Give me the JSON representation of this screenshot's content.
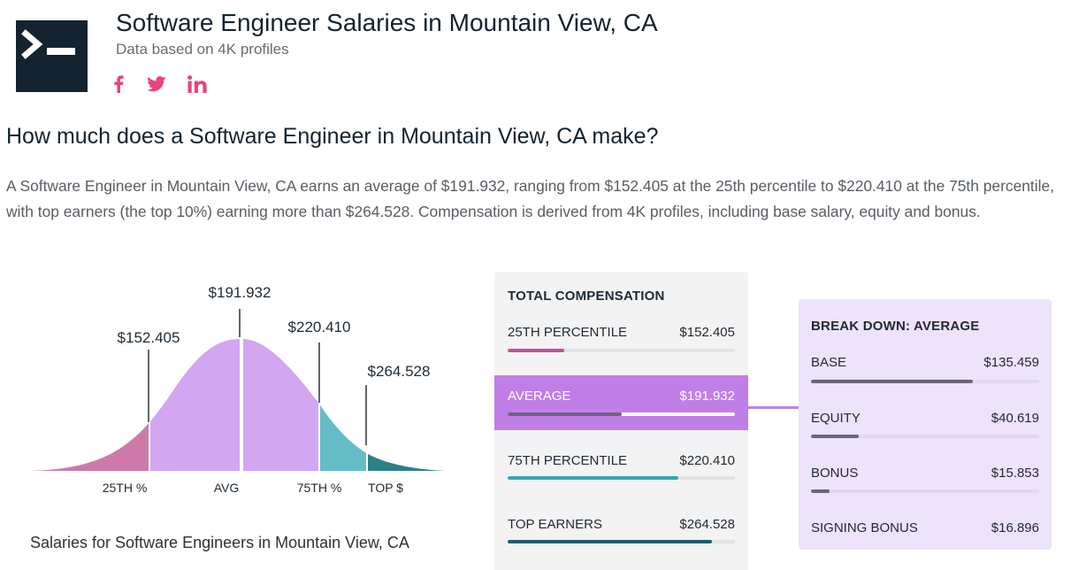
{
  "header": {
    "title": "Software Engineer Salaries in Mountain View, CA",
    "subtitle": "Data based on 4K profiles",
    "logo_icon": "terminal-prompt-icon",
    "social_icons": [
      "facebook-icon",
      "twitter-icon",
      "linkedin-icon"
    ],
    "social_color": "#e8467a"
  },
  "content": {
    "question": "How much does a Software Engineer in Mountain View, CA make?",
    "paragraph": "A Software Engineer in Mountain View, CA earns an average of $191.932, ranging from $152.405 at the 25th percentile to $220.410 at the 75th percentile, with top earners (the top 10%) earning more than $264.528. Compensation is derived from 4K profiles, including base salary, equity and bonus."
  },
  "chart_data": [
    {
      "type": "area",
      "caption": "Salaries for Software Engineers in Mountain View, CA",
      "markers": [
        {
          "label": "25TH %",
          "value_label": "$152.405",
          "color": "#cd7aab"
        },
        {
          "label": "AVG",
          "value_label": "$191.932",
          "color": "#d2a6f1"
        },
        {
          "label": "75TH %",
          "value_label": "$220.410",
          "color": "#64bdc6"
        },
        {
          "label": "TOP $",
          "value_label": "$264.528",
          "color": "#2e7f87"
        }
      ]
    },
    {
      "type": "table",
      "title": "TOTAL COMPENSATION",
      "rows": [
        {
          "label": "25TH PERCENTILE",
          "value": "$152.405",
          "fraction": 0.25,
          "color": "#c4509a"
        },
        {
          "label": "AVERAGE",
          "value": "$191.932",
          "fraction": 0.5,
          "color": "#6b6480",
          "highlight": true
        },
        {
          "label": "75TH PERCENTILE",
          "value": "$220.410",
          "fraction": 0.75,
          "color": "#3aa6ad"
        },
        {
          "label": "TOP EARNERS",
          "value": "$264.528",
          "fraction": 0.9,
          "color": "#1c5c68"
        }
      ]
    },
    {
      "type": "table",
      "title": "BREAK DOWN: AVERAGE",
      "rows": [
        {
          "label": "BASE",
          "value": "$135.459",
          "fraction": 0.71,
          "color": "#6b6480"
        },
        {
          "label": "EQUITY",
          "value": "$40.619",
          "fraction": 0.21,
          "color": "#6b6480"
        },
        {
          "label": "BONUS",
          "value": "$15.853",
          "fraction": 0.08,
          "color": "#6b6480"
        },
        {
          "label": "SIGNING BONUS",
          "value": "$16.896",
          "fraction": 0.09,
          "color": "#6b6480"
        }
      ]
    }
  ]
}
